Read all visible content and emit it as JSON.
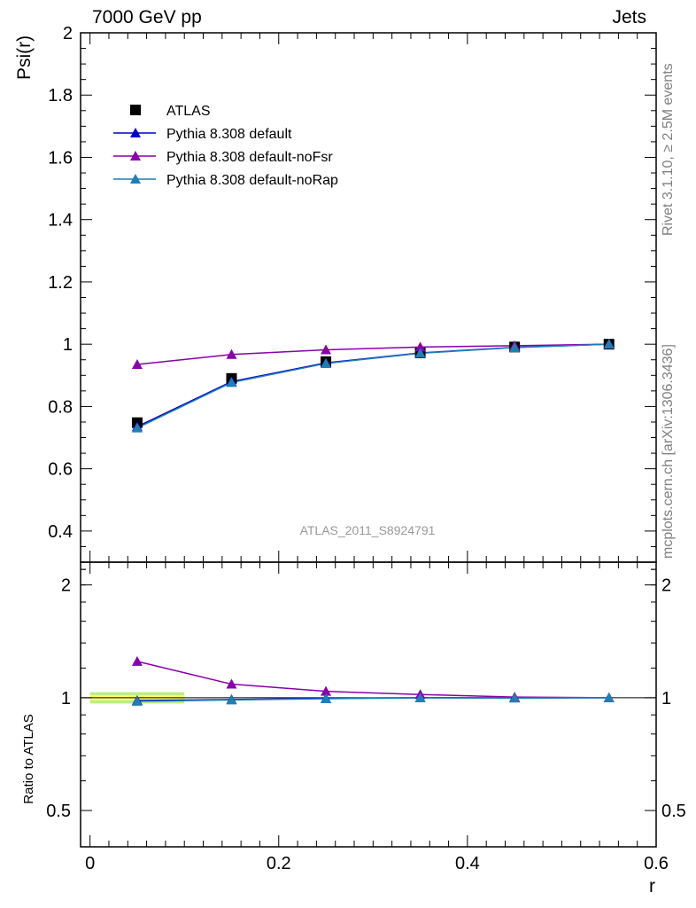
{
  "header": {
    "left_label": "7000 GeV pp",
    "right_label": "Jets"
  },
  "side_labels": {
    "rivet": "Rivet 3.1.10, ≥ 2.5M events",
    "source": "mcplots.cern.ch [arXiv:1306.3436]"
  },
  "analysis_label": "ATLAS_2011_S8924791",
  "colors": {
    "atlas": "#000000",
    "default": "#0000cc",
    "noFsr": "#8800aa",
    "noRap": "#1f7fb4",
    "band_inner": "#ffff66",
    "band_outer": "#bbee88"
  },
  "chart_data": [
    {
      "type": "line",
      "panel": "main",
      "ylabel": "Psi(r)",
      "xlim": [
        -0.01,
        0.6
      ],
      "ylim": [
        0.3,
        2.0
      ],
      "yticks": [
        0.4,
        0.6,
        0.8,
        1,
        1.2,
        1.4,
        1.6,
        1.8,
        2
      ],
      "ytick_labels": [
        "0.4",
        "0.6",
        "0.8",
        "1",
        "1.2",
        "1.4",
        "1.6",
        "1.8",
        "2"
      ],
      "legend_position": "top-left",
      "x": [
        0.05,
        0.15,
        0.25,
        0.35,
        0.45,
        0.55
      ],
      "series": [
        {
          "name": "ATLAS",
          "marker": "square",
          "values": [
            0.748,
            0.89,
            0.944,
            0.972,
            0.991,
            1.0
          ]
        },
        {
          "name": "Pythia 8.308 default",
          "marker": "triangle",
          "values": [
            0.735,
            0.88,
            0.94,
            0.972,
            0.99,
            1.0
          ]
        },
        {
          "name": "Pythia 8.308 default-noFsr",
          "marker": "triangle",
          "values": [
            0.935,
            0.967,
            0.982,
            0.991,
            0.995,
            1.0
          ]
        },
        {
          "name": "Pythia 8.308 default-noRap",
          "marker": "triangle",
          "values": [
            0.731,
            0.877,
            0.938,
            0.971,
            0.989,
            1.0
          ]
        }
      ]
    },
    {
      "type": "line",
      "panel": "ratio",
      "xlabel": "r",
      "ylabel": "Ratio to ATLAS",
      "xlim": [
        -0.01,
        0.6
      ],
      "ylim": [
        0.4,
        2.3
      ],
      "yticks": [
        0.5,
        1,
        2
      ],
      "ytick_labels": [
        "0.5",
        "1",
        "2"
      ],
      "xticks": [
        0,
        0.2,
        0.4,
        0.6
      ],
      "xtick_labels": [
        "0",
        "0.2",
        "0.4",
        "0.6"
      ],
      "x": [
        0.05,
        0.15,
        0.25,
        0.35,
        0.45,
        0.55
      ],
      "band": {
        "x_range": [
          0.0,
          0.1
        ],
        "outer": [
          0.965,
          1.035
        ],
        "inner": [
          0.985,
          1.015
        ]
      },
      "series": [
        {
          "name": "Pythia 8.308 default",
          "values": [
            0.983,
            0.989,
            0.996,
            1.0,
            0.999,
            1.0
          ]
        },
        {
          "name": "Pythia 8.308 default-noFsr",
          "values": [
            1.25,
            1.087,
            1.04,
            1.02,
            1.004,
            1.0
          ]
        },
        {
          "name": "Pythia 8.308 default-noRap",
          "values": [
            0.978,
            0.986,
            0.994,
            0.999,
            0.998,
            1.0
          ]
        }
      ]
    }
  ]
}
